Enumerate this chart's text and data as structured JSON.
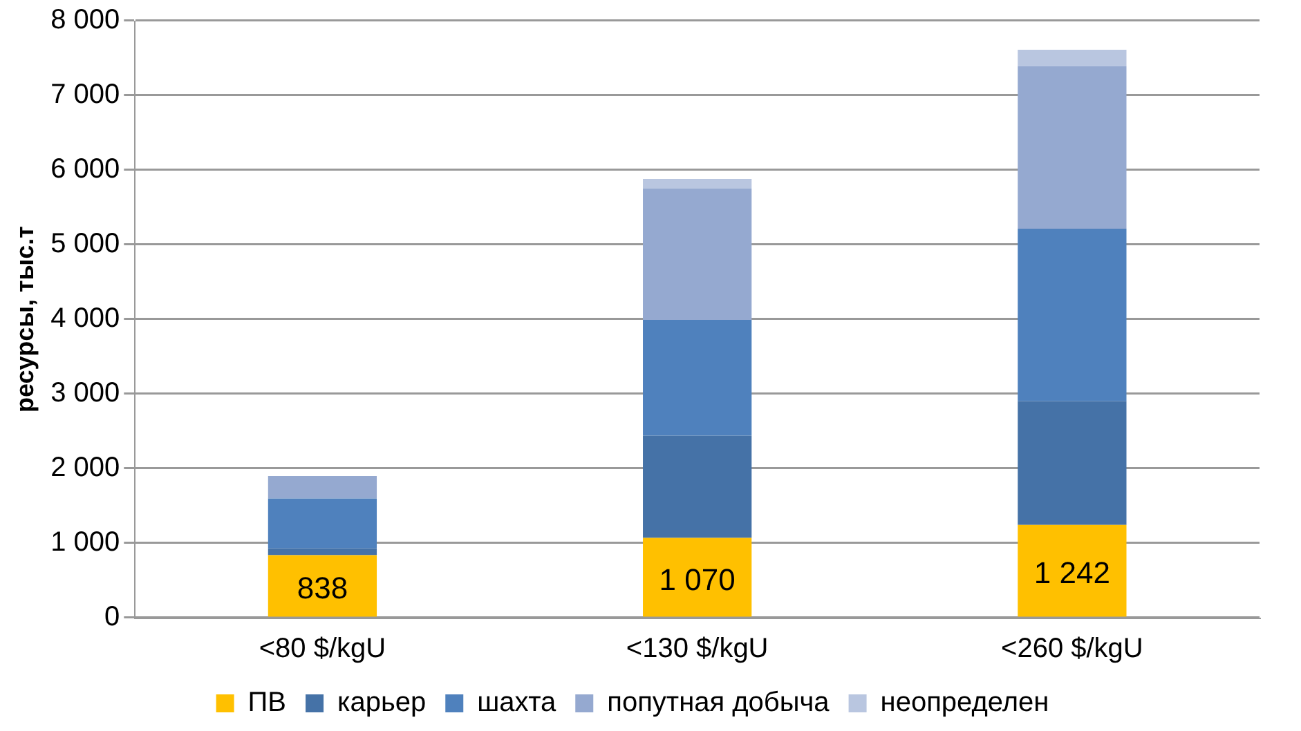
{
  "chart_data": {
    "type": "bar",
    "stacked": true,
    "ylabel": "ресурсы, тыс.т",
    "categories": [
      "<80 $/kgU",
      "<130 $/kgU",
      "<260 $/kgU"
    ],
    "series": [
      {
        "name": "ПВ",
        "color": "#ffc000",
        "values": [
          838,
          1070,
          1242
        ],
        "value_labels": [
          "838",
          "1 070",
          "1 242"
        ]
      },
      {
        "name": "карьер",
        "color": "#4572a7",
        "values": [
          90,
          1370,
          1660
        ]
      },
      {
        "name": "шахта",
        "color": "#4f81bd",
        "values": [
          670,
          1550,
          2310
        ]
      },
      {
        "name": "попутная добыча",
        "color": "#95a9d0",
        "values": [
          300,
          1760,
          2180
        ]
      },
      {
        "name": "неопределен",
        "color": "#b9c6e0",
        "values": [
          null,
          130,
          220
        ]
      }
    ],
    "ylim": [
      0,
      8000
    ],
    "yticks": [
      0,
      {
        "value": 1000,
        "label": "1 000"
      },
      {
        "value": 2000,
        "label": "2 000"
      },
      {
        "value": 3000,
        "label": "3 000"
      },
      {
        "value": 4000,
        "label": "4 000"
      },
      {
        "value": 5000,
        "label": "5 000"
      },
      {
        "value": 6000,
        "label": "6 000"
      },
      {
        "value": 7000,
        "label": "7 000"
      },
      {
        "value": 8000,
        "label": "8 000"
      }
    ],
    "grid": "y",
    "legend": "bottom"
  }
}
